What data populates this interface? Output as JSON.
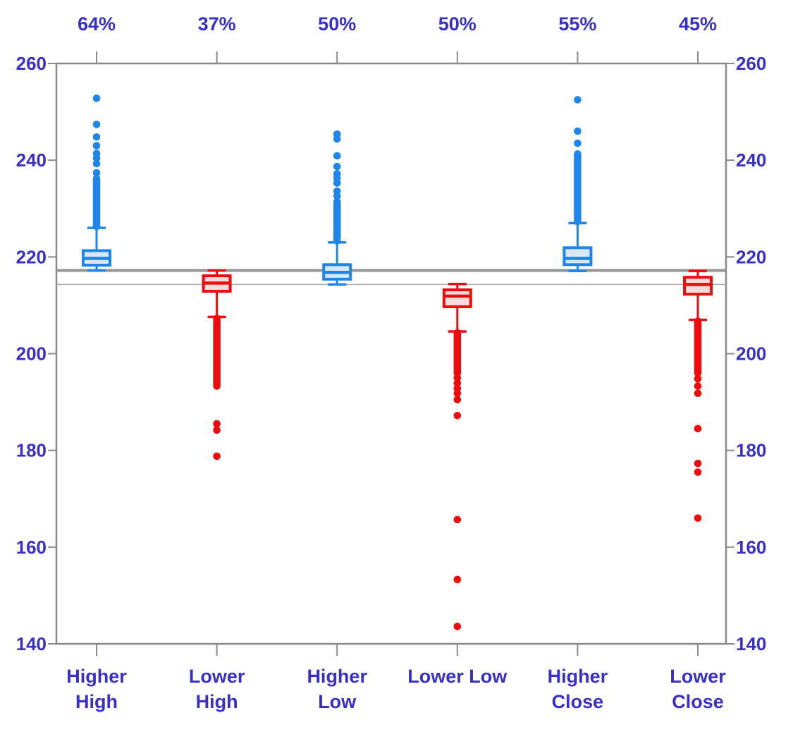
{
  "chart_data": {
    "type": "boxplot",
    "title": "",
    "background": "#FFFFFF",
    "colors": {
      "label_text": "#3830C9",
      "frame": "#8A8A8A",
      "tick": "#8A8A8A",
      "blue_stroke": "#1E86E8",
      "blue_fill": "#D9E8F8",
      "red_stroke": "#EE0D0D",
      "red_fill": "#F9DBDD",
      "ref_thick": "#949494",
      "ref_thin": "#ABABAB"
    },
    "y_axis": {
      "min": 140,
      "max": 260,
      "ticks": [
        260,
        240,
        220,
        200,
        180,
        160,
        140
      ],
      "labels_on_both_sides": true,
      "grid": false
    },
    "reference_lines": [
      {
        "value": 217.2,
        "style": "thick"
      },
      {
        "value": 214.3,
        "style": "thin"
      }
    ],
    "categories": [
      "Higher High",
      "Lower High",
      "Higher Low",
      "Lower Low",
      "Higher Close",
      "Lower Close"
    ],
    "top_labels": [
      "64%",
      "37%",
      "50%",
      "50%",
      "55%",
      "45%"
    ],
    "series": [
      {
        "label": "Higher High",
        "label_lines": [
          "Higher",
          "High"
        ],
        "pct": "64%",
        "color": "blue",
        "whisker_low": 217.2,
        "q1": 218.3,
        "median": 219.7,
        "q3": 221.3,
        "whisker_high": 226.0,
        "outlier_band": [
          226.3,
          236.2
        ],
        "outliers": [
          237.4,
          239.3,
          240.4,
          241.4,
          243.0,
          244.8,
          247.4,
          252.8
        ]
      },
      {
        "label": "Lower High",
        "label_lines": [
          "Lower",
          "High"
        ],
        "pct": "37%",
        "color": "red",
        "whisker_low": 207.6,
        "q1": 212.9,
        "median": 214.6,
        "q3": 216.1,
        "whisker_high": 217.2,
        "outlier_band": [
          193.3,
          207.3
        ],
        "outliers": [
          185.5,
          184.2,
          178.8
        ]
      },
      {
        "label": "Higher Low",
        "label_lines": [
          "Higher",
          "Low"
        ],
        "pct": "50%",
        "color": "blue",
        "whisker_low": 214.3,
        "q1": 215.4,
        "median": 216.8,
        "q3": 218.4,
        "whisker_high": 223.0,
        "outlier_band": [
          223.3,
          231.4
        ],
        "outliers": [
          232.6,
          233.6,
          235.3,
          236.3,
          237.2,
          238.7,
          240.9,
          244.4,
          245.4
        ]
      },
      {
        "label": "Lower Low",
        "label_lines": [
          "Lower Low"
        ],
        "pct": "50%",
        "color": "red",
        "whisker_low": 204.6,
        "q1": 209.7,
        "median": 211.9,
        "q3": 213.2,
        "whisker_high": 214.4,
        "outlier_band": [
          196.0,
          204.3
        ],
        "outliers": [
          195.0,
          193.9,
          192.8,
          191.8,
          190.5,
          187.2,
          165.7,
          153.3,
          143.6
        ]
      },
      {
        "label": "Higher Close",
        "label_lines": [
          "Higher",
          "Close"
        ],
        "pct": "55%",
        "color": "blue",
        "whisker_low": 217.1,
        "q1": 218.4,
        "median": 219.7,
        "q3": 221.9,
        "whisker_high": 227.0,
        "outlier_band": [
          227.3,
          241.3
        ],
        "outliers": [
          243.5,
          246.0,
          252.5
        ]
      },
      {
        "label": "Lower Close",
        "label_lines": [
          "Lower",
          "Close"
        ],
        "pct": "45%",
        "color": "red",
        "whisker_low": 207.0,
        "q1": 212.3,
        "median": 214.3,
        "q3": 215.8,
        "whisker_high": 217.1,
        "outlier_band": [
          196.0,
          206.7
        ],
        "outliers": [
          194.8,
          193.3,
          191.8,
          184.5,
          177.3,
          175.5,
          166.0
        ]
      }
    ]
  }
}
